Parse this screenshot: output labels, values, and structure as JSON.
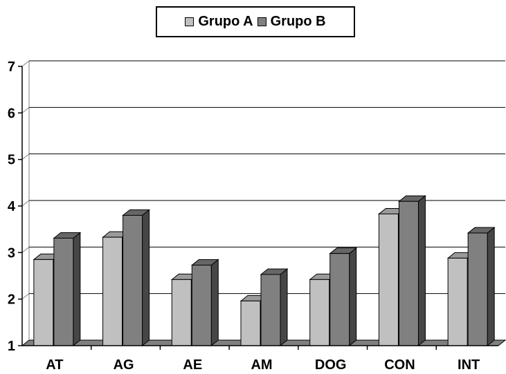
{
  "chart_data": {
    "type": "bar",
    "categories": [
      "AT",
      "AG",
      "AE",
      "AM",
      "DOG",
      "CON",
      "INT"
    ],
    "series": [
      {
        "name": "Grupo A",
        "values": [
          2.85,
          3.33,
          2.42,
          1.96,
          2.42,
          3.83,
          2.88
        ],
        "color": "#c0c0c0"
      },
      {
        "name": "Grupo B",
        "values": [
          3.31,
          3.8,
          2.73,
          2.53,
          2.98,
          4.1,
          3.42
        ],
        "color": "#808080"
      }
    ],
    "ylim": [
      1,
      7
    ],
    "yticks": [
      1,
      2,
      3,
      4,
      5,
      6,
      7
    ],
    "grid": true,
    "legend_position": "top-center",
    "title": "",
    "xlabel": "",
    "ylabel": ""
  }
}
